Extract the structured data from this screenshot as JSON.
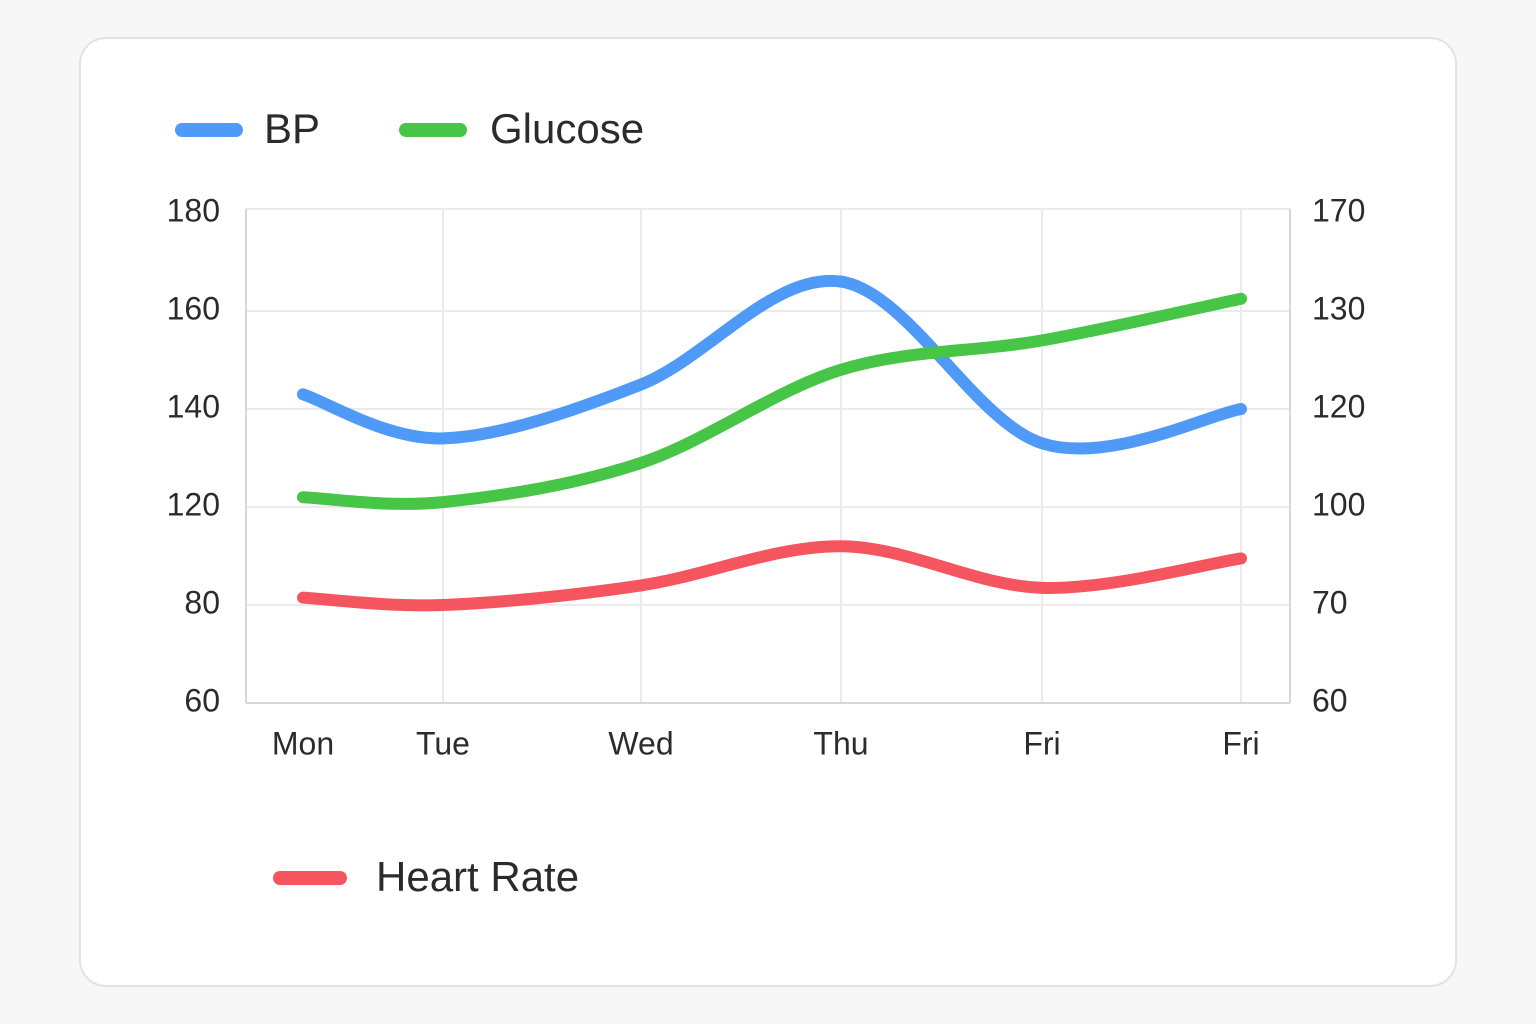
{
  "chart_data": {
    "type": "line",
    "categories": [
      "Mon",
      "Tue",
      "Wed",
      "Thu",
      "Fri",
      "Fri"
    ],
    "series": [
      {
        "name": "BP",
        "color": "#4f9af7",
        "values": [
          143,
          134,
          145,
          166,
          133,
          140
        ]
      },
      {
        "name": "Glucose",
        "color": "#46c546",
        "axis": "y2",
        "values": [
          102,
          101,
          109,
          124,
          127,
          135
        ]
      },
      {
        "name": "Heart Rate",
        "color": "#f5555f",
        "values": [
          83,
          80,
          88,
          104,
          87,
          99
        ]
      }
    ],
    "ylim": [
      60,
      180
    ],
    "yticks": [
      60,
      80,
      120,
      140,
      160,
      180
    ],
    "y2lim": [
      60,
      170
    ],
    "y2ticks": [
      60,
      70,
      100,
      120,
      130,
      170
    ],
    "grid": true
  }
}
